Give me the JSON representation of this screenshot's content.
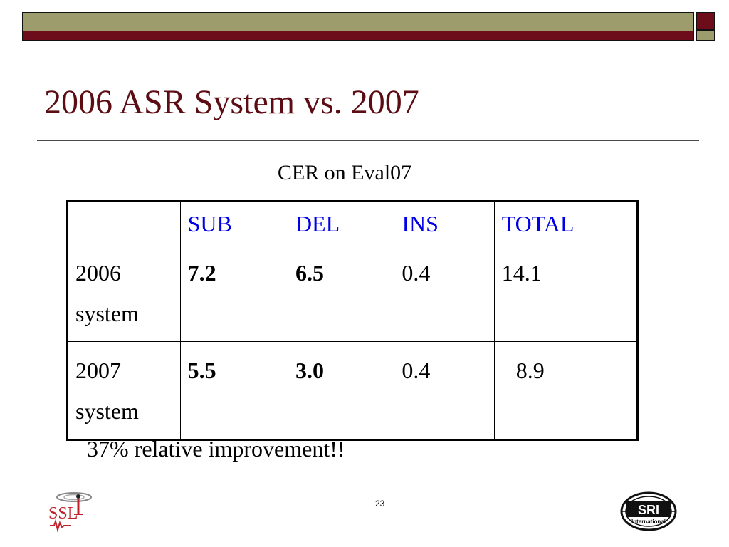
{
  "slide": {
    "title": "2006 ASR System vs. 2007",
    "caption": "CER on Eval07",
    "note": "37% relative improvement!!",
    "page_number": "23"
  },
  "colors": {
    "title": "#5b0d13",
    "header_text": "#0000e6",
    "band_olive": "#9d9c6c",
    "band_maroon": "#6d0c1a"
  },
  "table": {
    "headers": [
      "",
      "SUB",
      "DEL",
      "INS",
      "TOTAL"
    ],
    "rows": [
      {
        "label_line1": "2006",
        "label_line2": "system",
        "sub": "7.2",
        "del": "6.5",
        "ins": "0.4",
        "total": "14.1"
      },
      {
        "label_line1": "2007",
        "label_line2": "system",
        "sub": "5.5",
        "del": "3.0",
        "ins": "0.4",
        "total": "8.9"
      }
    ]
  },
  "logos": {
    "left": {
      "name": "ssl-logo",
      "text": "SSL"
    },
    "right": {
      "name": "sri-international-logo",
      "text": "SRI",
      "subtext": "International"
    }
  }
}
